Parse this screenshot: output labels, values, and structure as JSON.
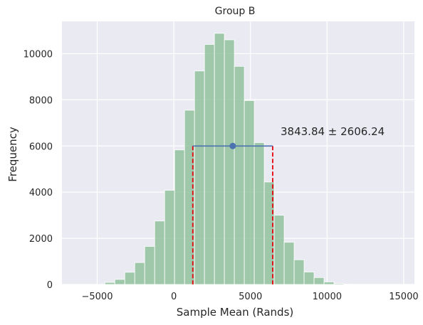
{
  "chart_data": {
    "type": "bar",
    "title": "Group B",
    "xlabel": "Sample Mean (Rands)",
    "ylabel": "Frequency",
    "xlim": [
      -7300,
      15700
    ],
    "ylim": [
      0,
      11400
    ],
    "grid": true,
    "background": "#EAEAF2",
    "x_ticks": [
      -5000,
      0,
      5000,
      10000,
      15000
    ],
    "x_tick_labels": [
      "−5000",
      "0",
      "5000",
      "10000",
      "15000"
    ],
    "y_ticks": [
      0,
      2000,
      4000,
      6000,
      8000,
      10000
    ],
    "y_tick_labels": [
      "0",
      "2000",
      "4000",
      "6000",
      "8000",
      "10000"
    ],
    "histogram": {
      "color": "#8FC19B",
      "bin_edges": [
        -4500,
        -3850,
        -3200,
        -2550,
        -1900,
        -1250,
        -600,
        50,
        700,
        1350,
        2000,
        2650,
        3300,
        3950,
        4600,
        5250,
        5900,
        6550,
        7200,
        7850,
        8500,
        9150,
        9800,
        10450,
        11100,
        11750
      ],
      "values": [
        90,
        220,
        530,
        950,
        1650,
        2750,
        4080,
        5830,
        7550,
        9250,
        10400,
        10880,
        10600,
        9450,
        7970,
        6150,
        4440,
        3000,
        1830,
        1070,
        540,
        300,
        110,
        40,
        10
      ]
    },
    "interval": {
      "center": 3843.84,
      "halfwidth": 2606.24,
      "low": 1237.6,
      "high": 6450.08,
      "level": 6000,
      "line_color": "#4C72B0",
      "marker_color": "#4C72B0",
      "bound_color": "#E8000B"
    },
    "annotation": "3843.84 ± 2606.24"
  }
}
